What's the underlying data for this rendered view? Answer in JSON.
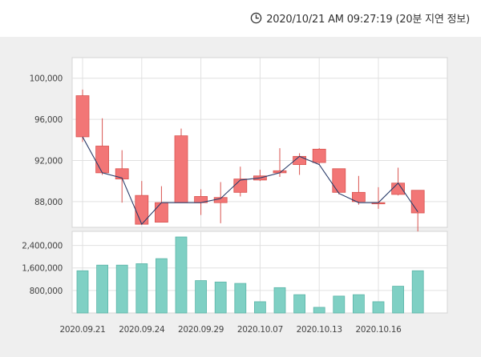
{
  "timestamp": {
    "text": "2020/10/21 AM 09:27:19 (20분 지연 정보)",
    "icon": "clock-icon"
  },
  "colors": {
    "rise": "#f27676",
    "rise_border": "#d9534f",
    "fall": "#2ea1e0",
    "fall_border": "#1e88c8",
    "ma_line": "#2c3e6b",
    "volume": "#7fd0c4",
    "volume_border": "#5bb5a8",
    "panel_bg": "#ffffff",
    "outer_bg": "#efefef",
    "grid": "#e0e0e0"
  },
  "chart_data": [
    {
      "type": "candlestick",
      "title": "",
      "x_tick_labels": [
        "2020.09.21",
        "2020.09.24",
        "2020.09.29",
        "2020.10.07",
        "2020.10.13",
        "2020.10.16"
      ],
      "y_tick_labels": [
        "100,000",
        "96,000",
        "92,000",
        "88,000"
      ],
      "ylim": [
        85500,
        102000
      ],
      "grid": true,
      "candles": [
        {
          "open": 94300,
          "close": 98300,
          "high": 98900,
          "low": 93800
        },
        {
          "open": 90800,
          "close": 93400,
          "high": 96100,
          "low": 90600
        },
        {
          "open": 90200,
          "close": 91200,
          "high": 93000,
          "low": 87900
        },
        {
          "open": 85800,
          "close": 88600,
          "high": 90000,
          "low": 85800
        },
        {
          "open": 86000,
          "close": 87900,
          "high": 89500,
          "low": 86000
        },
        {
          "open": 87900,
          "close": 94400,
          "high": 95100,
          "low": 87900
        },
        {
          "open": 87900,
          "close": 88500,
          "high": 89200,
          "low": 86700
        },
        {
          "open": 87900,
          "close": 88400,
          "high": 89900,
          "low": 85900
        },
        {
          "open": 88900,
          "close": 90200,
          "high": 91400,
          "low": 88500
        },
        {
          "open": 90100,
          "close": 90500,
          "high": 91100,
          "low": 90000
        },
        {
          "open": 90800,
          "close": 91000,
          "high": 93200,
          "low": 90400
        },
        {
          "open": 91600,
          "close": 92400,
          "high": 92700,
          "low": 90600
        },
        {
          "open": 91800,
          "close": 93100,
          "high": 93200,
          "low": 91600
        },
        {
          "open": 88900,
          "close": 91200,
          "high": 91200,
          "low": 88700
        },
        {
          "open": 88000,
          "close": 88900,
          "high": 90500,
          "low": 87700
        },
        {
          "open": 87800,
          "close": 87900,
          "high": 89400,
          "low": 87300
        },
        {
          "open": 88700,
          "close": 89800,
          "high": 91300,
          "low": 88600
        },
        {
          "open": 86900,
          "close": 89100,
          "high": 89100,
          "low": 85100
        }
      ],
      "line_values": [
        94300,
        90800,
        90300,
        85800,
        87900,
        87900,
        87900,
        88300,
        90100,
        90300,
        90800,
        92400,
        91600,
        88800,
        87900,
        87900,
        89800,
        87000
      ]
    },
    {
      "type": "bar",
      "title": "",
      "y_tick_labels": [
        "2,400,000",
        "1,600,000",
        "800,000"
      ],
      "ylim": [
        0,
        2900000
      ],
      "grid": true,
      "values": [
        1500000,
        1700000,
        1700000,
        1750000,
        1930000,
        2700000,
        1150000,
        1100000,
        1050000,
        400000,
        900000,
        650000,
        200000,
        600000,
        650000,
        400000,
        950000,
        1500000
      ]
    }
  ]
}
